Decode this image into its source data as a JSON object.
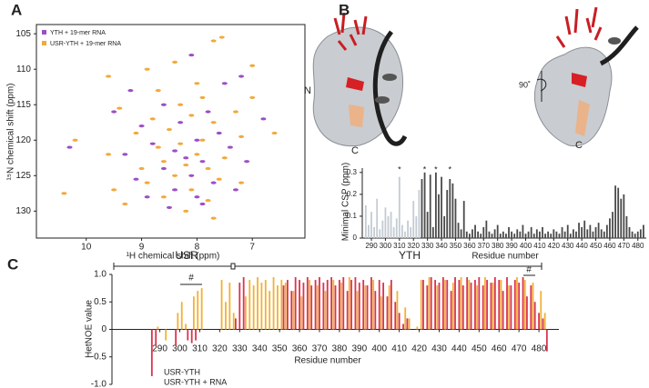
{
  "chart_data": [
    {
      "type": "scatter",
      "panel": "A",
      "xlabel": "¹H chemical shift (ppm)",
      "ylabel": "¹⁵N chemical shift (ppm)",
      "xlim": [
        10.9,
        6.05
      ],
      "ylim": [
        133.8,
        103.7
      ],
      "xticks": [
        10,
        9,
        8,
        7
      ],
      "yticks": [
        105,
        110,
        115,
        120,
        125,
        130
      ],
      "series": [
        {
          "name": "YTH + 19-mer RNA",
          "color": "#9b4fc4",
          "x": [
            8.1,
            7.5,
            9.2,
            8.6,
            7.8,
            8.3,
            9.0,
            7.6,
            8.0,
            8.8,
            8.4,
            7.4,
            9.3,
            8.2,
            7.9,
            8.6,
            8.1,
            9.1,
            7.7,
            8.4,
            8.0,
            7.3,
            8.9,
            7.1,
            8.5,
            7.9,
            10.3,
            6.8,
            7.2,
            9.5
          ],
          "y": [
            108,
            112,
            113,
            115,
            116,
            117.5,
            118,
            119,
            120,
            120.5,
            121.5,
            121,
            122,
            122.5,
            123,
            124,
            125,
            125.5,
            126,
            127,
            128,
            127,
            128,
            123,
            129.5,
            129,
            121,
            117,
            111,
            116
          ]
        },
        {
          "name": "USR-YTH + 19-mer RNA",
          "color": "#f2a93b",
          "x": [
            7.55,
            7.7,
            8.4,
            8.9,
            7.0,
            9.6,
            8.0,
            8.7,
            7.9,
            8.3,
            9.4,
            7.3,
            8.1,
            8.8,
            7.7,
            8.5,
            9.1,
            7.2,
            7.9,
            8.3,
            8.7,
            10.2,
            9.6,
            8.0,
            7.5,
            8.6,
            8.2,
            7.8,
            9.0,
            8.4,
            7.6,
            8.9,
            9.5,
            8.1,
            7.2,
            8.6,
            7.8,
            9.3,
            8.2,
            7.7,
            6.6,
            10.4,
            7.0
          ],
          "y": [
            105.5,
            106,
            109,
            110,
            109.5,
            111,
            112,
            113,
            114,
            115,
            115.5,
            116,
            116.5,
            117,
            117.5,
            118.5,
            119,
            119.5,
            120,
            120.5,
            121,
            120,
            122,
            122,
            122.5,
            123,
            123.5,
            124,
            124,
            125,
            125.5,
            126,
            127,
            127,
            126,
            128,
            128.5,
            129,
            130,
            131,
            119,
            127.5,
            114
          ]
        }
      ]
    },
    {
      "type": "bar",
      "panel": "B",
      "structure_labels": [
        "N",
        "C",
        "90˚",
        "C"
      ],
      "xlabel": "Residue number",
      "ylabel": "Minimal CSP (ppm)",
      "xlim": [
        283.5,
        486
      ],
      "ylim": [
        0,
        0.32
      ],
      "xticks": [
        290,
        300,
        310,
        320,
        330,
        340,
        350,
        360,
        370,
        380,
        390,
        400,
        410,
        420,
        430,
        440,
        450,
        460,
        470,
        480
      ],
      "yticks": [
        0,
        0.1,
        0.2,
        0.3
      ],
      "annotations": [
        {
          "text": "*",
          "x": 310
        },
        {
          "text": "*",
          "x": 328
        },
        {
          "text": "*",
          "x": 336
        },
        {
          "text": "*",
          "x": 346
        }
      ],
      "series": [
        {
          "color": "#c3cbd3",
          "x": [
            286,
            288,
            290,
            292,
            294,
            296,
            298,
            300,
            302,
            304,
            306,
            308,
            310,
            312,
            314,
            316,
            318,
            320,
            322,
            324
          ],
          "values": [
            0.15,
            0.06,
            0.12,
            0.05,
            0.18,
            0.04,
            0.08,
            0.14,
            0.1,
            0.12,
            0.05,
            0.09,
            0.28,
            0.06,
            0.03,
            0.08,
            0.05,
            0.17,
            0.1,
            0.22
          ]
        },
        {
          "color": "#4a4a4a",
          "x": [
            326,
            328,
            330,
            332,
            334,
            336,
            338,
            340,
            342,
            344,
            346,
            348,
            350,
            352,
            354,
            356,
            358,
            360,
            362,
            364,
            366,
            368,
            370,
            372,
            374,
            376,
            378,
            380,
            382,
            384,
            386,
            388,
            390,
            392,
            394,
            396,
            398,
            400,
            402,
            404,
            406,
            408,
            410,
            412,
            414,
            416,
            418,
            420,
            422,
            424,
            426,
            428,
            430,
            432,
            434,
            436,
            438,
            440,
            442,
            444,
            446,
            448,
            450,
            452,
            454,
            456,
            458,
            460,
            462,
            464,
            466,
            468,
            470,
            472,
            474,
            476,
            478,
            480,
            482,
            484
          ],
          "values": [
            0.27,
            0.3,
            0.12,
            0.29,
            0.05,
            0.3,
            0.2,
            0.28,
            0.1,
            0.22,
            0.27,
            0.25,
            0.18,
            0.07,
            0.04,
            0.17,
            0.03,
            0.02,
            0.04,
            0.06,
            0.03,
            0.02,
            0.05,
            0.08,
            0.03,
            0.02,
            0.04,
            0.06,
            0.02,
            0.03,
            0.02,
            0.05,
            0.03,
            0.02,
            0.04,
            0.03,
            0.06,
            0.02,
            0.03,
            0.05,
            0.02,
            0.04,
            0.03,
            0.05,
            0.02,
            0.03,
            0.02,
            0.04,
            0.03,
            0.02,
            0.05,
            0.03,
            0.06,
            0.02,
            0.04,
            0.03,
            0.07,
            0.05,
            0.08,
            0.04,
            0.06,
            0.03,
            0.05,
            0.07,
            0.04,
            0.03,
            0.06,
            0.09,
            0.12,
            0.24,
            0.23,
            0.18,
            0.2,
            0.1,
            0.05,
            0.03,
            0.02,
            0.03,
            0.04,
            0.06
          ]
        }
      ]
    },
    {
      "type": "bar",
      "panel": "C",
      "xlabel": "Residue number",
      "ylabel": "HetNOE value",
      "region_labels": [
        "USR",
        "YTH"
      ],
      "marks": [
        "#",
        "#"
      ],
      "xlim": [
        266,
        490
      ],
      "ylim": [
        -1,
        1
      ],
      "xticks": [
        290,
        300,
        310,
        320,
        330,
        340,
        350,
        360,
        370,
        380,
        390,
        400,
        410,
        420,
        430,
        440,
        450,
        460,
        470,
        480
      ],
      "yticks": [
        {
          "value": -1,
          "label": "-1.0"
        },
        -0.5,
        0,
        0.5,
        {
          "value": 1,
          "label": "1.0"
        }
      ],
      "series": [
        {
          "name": "USR-YTH",
          "color": "#d9344f",
          "x": [
            286,
            288,
            298,
            304,
            306,
            308,
            328,
            330,
            332,
            352,
            354,
            356,
            358,
            360,
            362,
            364,
            366,
            368,
            370,
            372,
            374,
            376,
            378,
            380,
            382,
            384,
            386,
            388,
            390,
            392,
            394,
            396,
            398,
            400,
            402,
            404,
            406,
            408,
            410,
            412,
            414,
            422,
            424,
            426,
            428,
            430,
            432,
            434,
            436,
            438,
            440,
            442,
            444,
            446,
            448,
            450,
            452,
            454,
            456,
            458,
            460,
            462,
            464,
            466,
            468,
            470,
            472,
            474,
            476,
            478,
            480,
            482,
            484
          ],
          "values": [
            -0.85,
            -0.3,
            -0.3,
            -0.2,
            -0.25,
            -0.2,
            0.2,
            0.85,
            0.95,
            0.8,
            0.9,
            0.7,
            0.95,
            0.9,
            0.85,
            0.95,
            0.8,
            0.9,
            0.95,
            0.85,
            0.9,
            0.95,
            0.8,
            0.9,
            0.95,
            0.7,
            0.9,
            0.95,
            0.85,
            0.9,
            0.8,
            0.95,
            0.7,
            0.9,
            0.85,
            0.6,
            0.9,
            0.5,
            0.3,
            0.1,
            0.2,
            0.9,
            0.8,
            0.95,
            0.9,
            0.85,
            0.95,
            0.9,
            0.7,
            0.95,
            0.9,
            0.8,
            0.95,
            0.85,
            0.9,
            0.95,
            0.8,
            0.9,
            0.85,
            0.95,
            0.9,
            0.7,
            0.95,
            0.8,
            0.9,
            0.85,
            0.95,
            0.6,
            0.8,
            0.5,
            0.3,
            0.2,
            -0.4
          ]
        },
        {
          "name": "USR-YTH + RNA",
          "color": "#f2b134",
          "x": [
            289,
            293,
            299,
            301,
            303,
            307,
            309,
            311,
            321,
            323,
            325,
            327,
            333,
            335,
            337,
            339,
            341,
            343,
            345,
            347,
            349,
            351,
            353,
            357,
            361,
            365,
            369,
            373,
            377,
            381,
            385,
            389,
            393,
            397,
            401,
            405,
            409,
            413,
            415,
            419,
            421,
            425,
            429,
            433,
            437,
            441,
            445,
            449,
            453,
            457,
            461,
            465,
            469,
            473,
            477,
            481,
            483
          ],
          "values": [
            0.05,
            -0.2,
            0.3,
            0.5,
            0.1,
            0.6,
            0.7,
            0.75,
            0.9,
            0.5,
            0.85,
            0.3,
            0.6,
            0.9,
            0.8,
            0.95,
            0.85,
            0.9,
            0.7,
            0.95,
            0.8,
            0.9,
            0.85,
            0.7,
            0.6,
            0.9,
            0.8,
            0.7,
            0.9,
            0.85,
            0.95,
            0.7,
            0.8,
            0.9,
            0.6,
            0.8,
            0.7,
            0.4,
            0.2,
            0.05,
            0.9,
            0.95,
            0.8,
            0.9,
            0.85,
            0.95,
            0.9,
            0.8,
            0.95,
            0.85,
            0.9,
            0.8,
            0.95,
            0.9,
            0.85,
            0.7,
            0.3
          ]
        }
      ]
    }
  ]
}
